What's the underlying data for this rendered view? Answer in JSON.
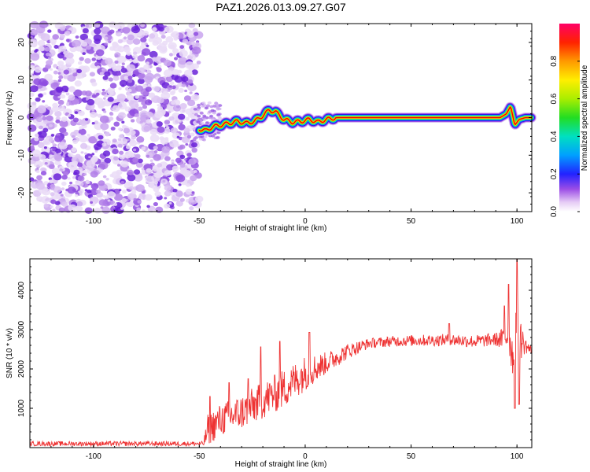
{
  "title": "PAZ1.2026.013.09.27.G07",
  "chart_data": [
    {
      "type": "heatmap",
      "title": "PAZ1.2026.013.09.27.G07",
      "xlabel": "Height of straight line (km)",
      "ylabel": "Frequency (Hz)",
      "xlim": [
        -130,
        107
      ],
      "ylim": [
        -25,
        25
      ],
      "xticks": [
        -100,
        -50,
        0,
        50,
        100
      ],
      "yticks": [
        -20,
        -10,
        0,
        10,
        20
      ],
      "colorbar": {
        "label": "Normalized spectral amplitude",
        "range": [
          0,
          1
        ],
        "ticks": [
          0.0,
          0.2,
          0.4,
          0.6,
          0.8
        ]
      },
      "ridge": {
        "x": [
          -50,
          -47,
          -44,
          -40,
          -36,
          -32,
          -28,
          -24,
          -20,
          -17,
          -14,
          -10,
          -6,
          -2,
          2,
          6,
          10,
          15,
          25,
          50,
          75,
          92,
          95,
          97,
          99,
          101,
          104,
          107
        ],
        "freq": [
          -3,
          -3.5,
          -2.5,
          -2,
          -1.5,
          -1,
          -1.5,
          -1,
          0.5,
          2,
          1.5,
          -0.5,
          -1.2,
          -1,
          -0.5,
          -1.2,
          -0.5,
          0,
          0,
          0,
          0,
          0,
          1,
          3,
          -2,
          -0.5,
          0,
          0
        ]
      }
    },
    {
      "type": "line",
      "xlabel": "Height of straight line (km)",
      "ylabel": "SNR (10 * v/v)",
      "xlim": [
        -130,
        107
      ],
      "ylim": [
        0,
        4800
      ],
      "xticks": [
        -100,
        -50,
        0,
        50,
        100
      ],
      "yticks": [
        1000,
        2000,
        3000,
        4000
      ],
      "color": "#ee3333",
      "envelope": {
        "x": [
          -130,
          -48,
          -46,
          -40,
          -30,
          -20,
          -10,
          0,
          10,
          20,
          30,
          40,
          50,
          60,
          70,
          80,
          90,
          94,
          96,
          98,
          100,
          102,
          107
        ],
        "y": [
          100,
          100,
          450,
          700,
          900,
          1200,
          1500,
          1900,
          2150,
          2450,
          2650,
          2700,
          2720,
          2730,
          2740,
          2700,
          2750,
          2750,
          2900,
          2300,
          3300,
          2700,
          2450
        ]
      },
      "noise": {
        "x": [
          -130,
          -48,
          -46,
          -30,
          -10,
          0,
          10,
          20,
          30,
          60,
          90,
          96,
          100,
          104,
          107
        ],
        "amp": [
          60,
          60,
          400,
          450,
          500,
          450,
          280,
          200,
          130,
          150,
          170,
          400,
          700,
          200,
          120
        ]
      },
      "peaks": [
        {
          "x": -45,
          "y": 1300
        },
        {
          "x": -36,
          "y": 1650
        },
        {
          "x": -27,
          "y": 1750
        },
        {
          "x": -21,
          "y": 2560
        },
        {
          "x": -12,
          "y": 2700
        },
        {
          "x": 2,
          "y": 2930
        },
        {
          "x": 68,
          "y": 3150
        },
        {
          "x": 94,
          "y": 3600
        },
        {
          "x": 96,
          "y": 4150
        },
        {
          "x": 100,
          "y": 4850
        },
        {
          "x": 99,
          "y": 1000
        },
        {
          "x": 101,
          "y": 1100
        }
      ]
    }
  ]
}
